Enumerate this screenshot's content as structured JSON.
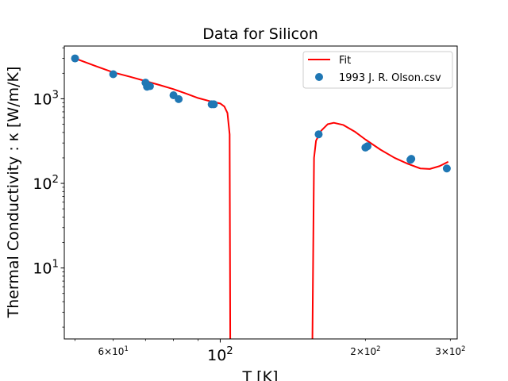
{
  "chart_data": {
    "type": "scatter",
    "title": "Data for Silicon",
    "xlabel": "T [K]",
    "ylabel": "Thermal Conductivity : κ [W/m/K]",
    "xscale": "log",
    "yscale": "log",
    "xlim": [
      47.5,
      310
    ],
    "ylim": [
      1.45,
      4200
    ],
    "grid": false,
    "legend_position": "top-right",
    "x_ticks_major": [
      {
        "value": 100,
        "base": "10",
        "exp": "2"
      }
    ],
    "x_ticks_minor_labeled": [
      {
        "value": 60,
        "mant": "6",
        "base": "10",
        "exp": "1"
      },
      {
        "value": 200,
        "mant": "2",
        "base": "10",
        "exp": "2"
      },
      {
        "value": 300,
        "mant": "3",
        "base": "10",
        "exp": "2"
      }
    ],
    "y_ticks_major": [
      {
        "value": 10,
        "base": "10",
        "exp": "1"
      },
      {
        "value": 100,
        "base": "10",
        "exp": "2"
      },
      {
        "value": 1000,
        "base": "10",
        "exp": "3"
      }
    ],
    "series": [
      {
        "name": "Fit",
        "kind": "line",
        "color": "#ff0000",
        "segments": [
          [
            [
              50,
              3000
            ],
            [
              55,
              2450
            ],
            [
              60,
              2050
            ],
            [
              65,
              1820
            ],
            [
              70,
              1620
            ],
            [
              75,
              1450
            ],
            [
              80,
              1300
            ],
            [
              85,
              1150
            ],
            [
              90,
              1020
            ],
            [
              95,
              940
            ],
            [
              100,
              880
            ],
            [
              102,
              810
            ],
            [
              103.5,
              680
            ],
            [
              104.6,
              380
            ],
            [
              104.9,
              1.45
            ]
          ],
          [
            [
              155.3,
              1.45
            ],
            [
              156.5,
              200
            ],
            [
              158,
              320
            ],
            [
              162,
              420
            ],
            [
              167,
              500
            ],
            [
              172,
              520
            ],
            [
              180,
              490
            ],
            [
              190,
              410
            ],
            [
              200,
              330
            ],
            [
              215,
              250
            ],
            [
              230,
              200
            ],
            [
              245,
              170
            ],
            [
              260,
              150
            ],
            [
              272,
              148
            ],
            [
              285,
              160
            ],
            [
              297,
              180
            ]
          ]
        ]
      },
      {
        "name": "1993 J. R. Olson.csv",
        "kind": "scatter",
        "color": "#1f77b4",
        "points": [
          {
            "x": 50,
            "y": 3000
          },
          {
            "x": 60,
            "y": 1950
          },
          {
            "x": 70,
            "y": 1550
          },
          {
            "x": 70.5,
            "y": 1390
          },
          {
            "x": 71.5,
            "y": 1410
          },
          {
            "x": 80,
            "y": 1100
          },
          {
            "x": 82,
            "y": 990
          },
          {
            "x": 96,
            "y": 860
          },
          {
            "x": 97,
            "y": 860
          },
          {
            "x": 160,
            "y": 380
          },
          {
            "x": 200,
            "y": 265
          },
          {
            "x": 202,
            "y": 275
          },
          {
            "x": 248,
            "y": 190
          },
          {
            "x": 249,
            "y": 195
          },
          {
            "x": 295,
            "y": 150
          }
        ]
      }
    ]
  }
}
